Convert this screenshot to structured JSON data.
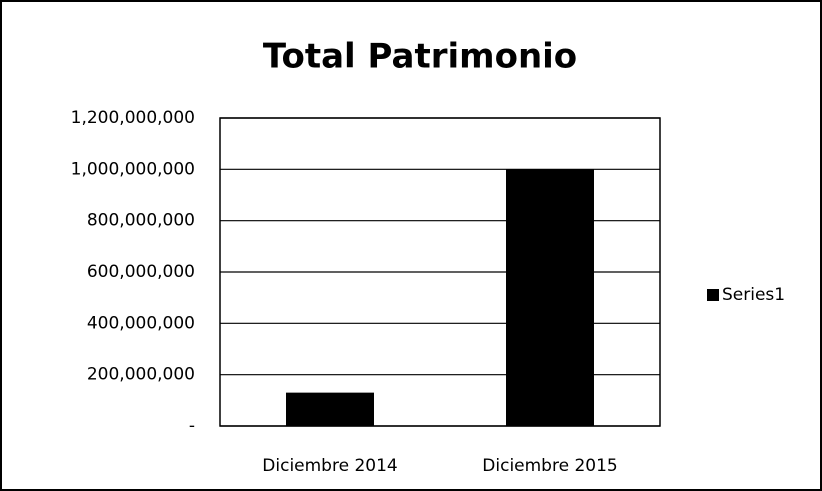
{
  "chart_data": {
    "type": "bar",
    "title": "Total Patrimonio",
    "categories": [
      "Diciembre 2014",
      "Diciembre 2015"
    ],
    "series": [
      {
        "name": "Series1",
        "color": "#000000",
        "values": [
          130000000,
          1000000000
        ]
      }
    ],
    "ylim": [
      0,
      1200000000
    ],
    "yticks": [
      {
        "value": 0,
        "label": "-"
      },
      {
        "value": 200000000,
        "label": "200,000,000"
      },
      {
        "value": 400000000,
        "label": "400,000,000"
      },
      {
        "value": 600000000,
        "label": "600,000,000"
      },
      {
        "value": 800000000,
        "label": "800,000,000"
      },
      {
        "value": 1000000000,
        "label": "1,000,000,000"
      },
      {
        "value": 1200000000,
        "label": "1,200,000,000"
      }
    ],
    "grid": true,
    "legend": "right"
  }
}
